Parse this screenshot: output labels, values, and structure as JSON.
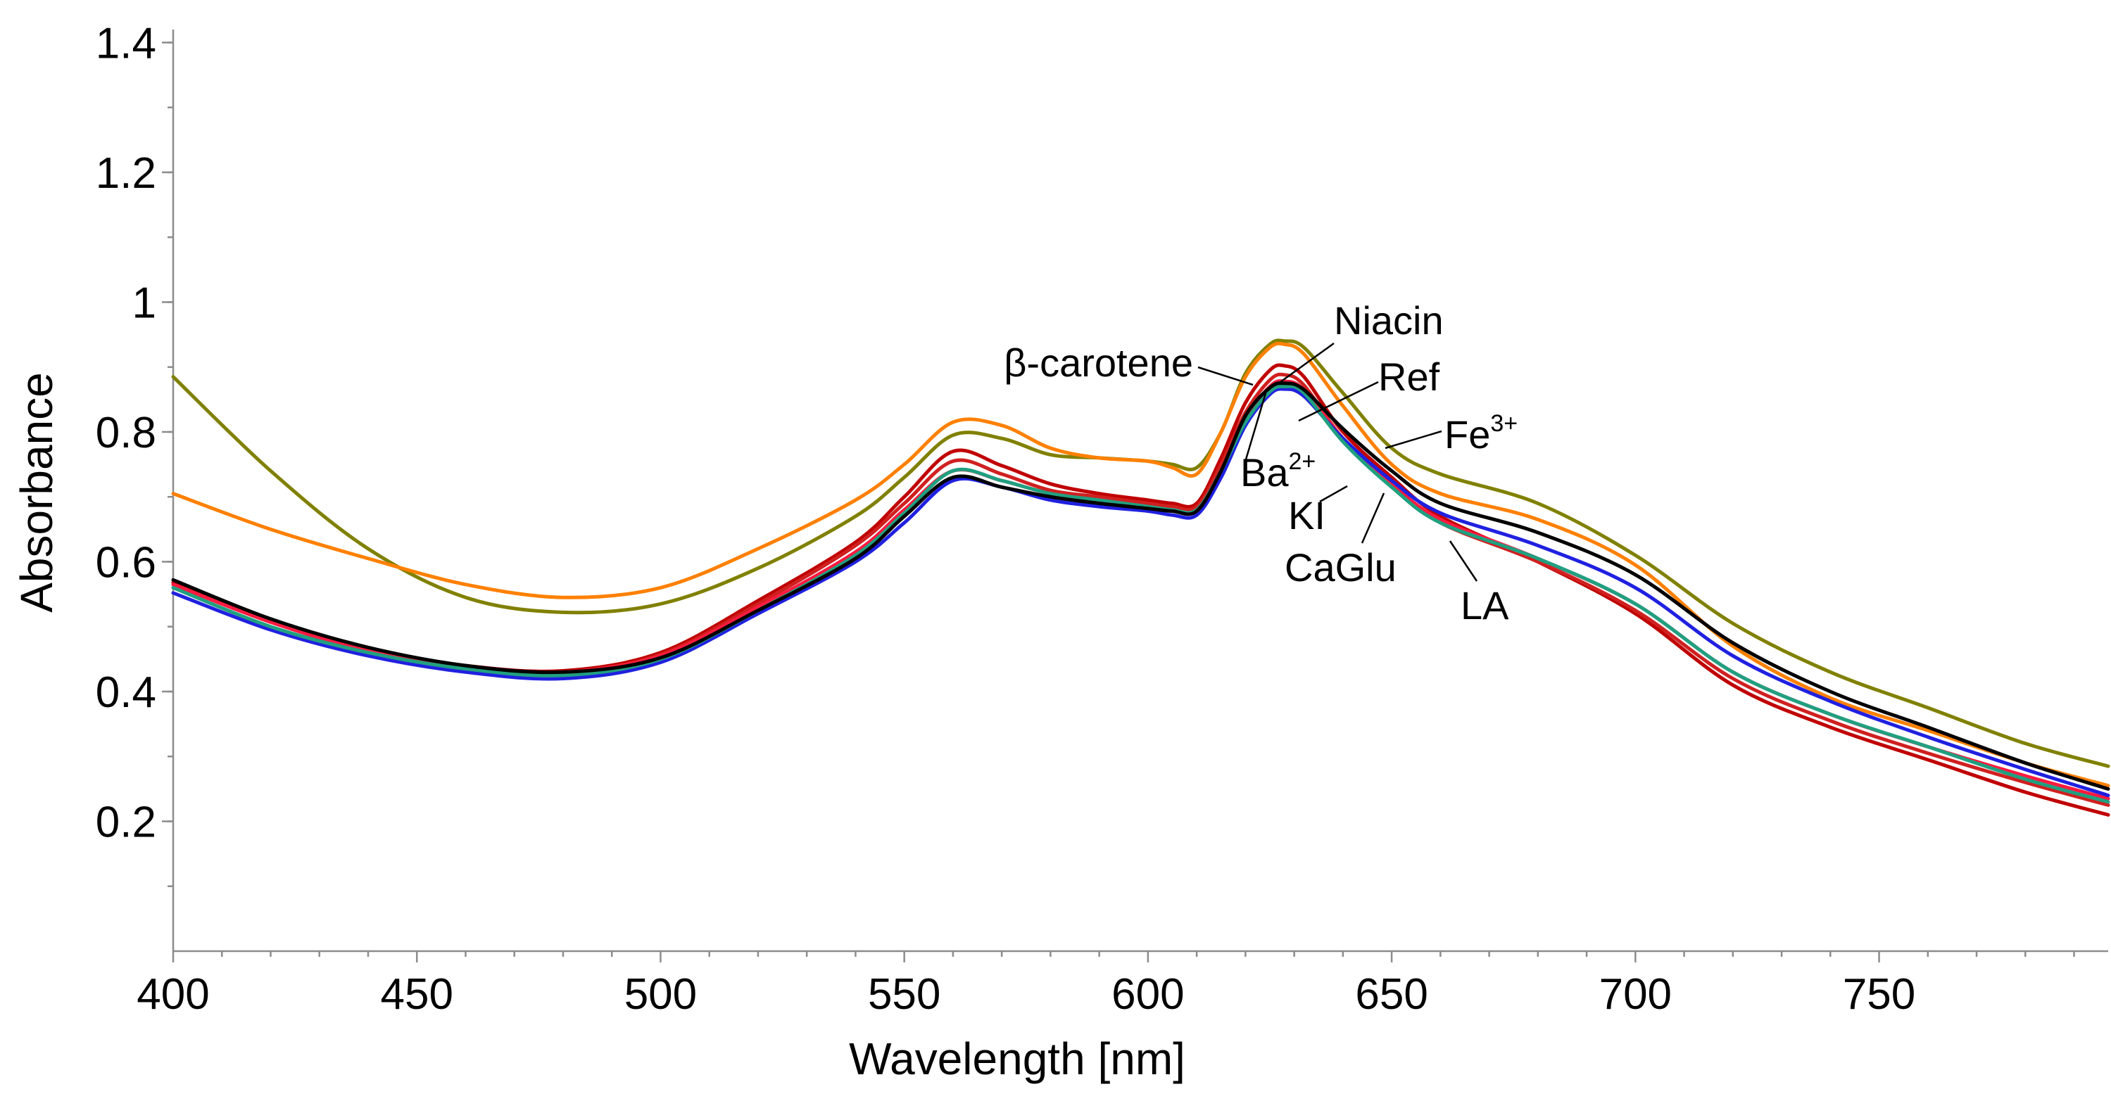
{
  "chart_data": {
    "type": "line",
    "title": "",
    "xlabel": "Wavelength [nm]",
    "ylabel": "Absorbance",
    "xlim": [
      400,
      797
    ],
    "ylim": [
      0,
      1.42
    ],
    "xticks": [
      400,
      450,
      500,
      550,
      600,
      650,
      700,
      750
    ],
    "xtick_labels": [
      "400",
      "450",
      "500",
      "550",
      "600",
      "650",
      "700",
      "750"
    ],
    "yticks": [
      0.2,
      0.4,
      0.6,
      0.8,
      1.0,
      1.2,
      1.4
    ],
    "ytick_labels": [
      "0.2",
      "0.4",
      "0.6",
      "0.8",
      "1",
      "1.2",
      "1.4"
    ],
    "grid": false,
    "x": [
      400,
      420,
      440,
      460,
      480,
      500,
      520,
      540,
      550,
      560,
      570,
      580,
      590,
      600,
      605,
      610,
      615,
      620,
      625,
      628,
      632,
      640,
      650,
      660,
      680,
      700,
      720,
      740,
      760,
      780,
      797
    ],
    "series": [
      {
        "name": "Fe3+",
        "color": "#808000",
        "values": [
          0.885,
          0.74,
          0.62,
          0.545,
          0.522,
          0.535,
          0.59,
          0.67,
          0.73,
          0.795,
          0.79,
          0.765,
          0.76,
          0.755,
          0.75,
          0.745,
          0.8,
          0.89,
          0.935,
          0.94,
          0.93,
          0.86,
          0.775,
          0.735,
          0.69,
          0.61,
          0.505,
          0.43,
          0.375,
          0.32,
          0.285
        ]
      },
      {
        "name": "β-carotene",
        "color": "#ff8000",
        "values": [
          0.705,
          0.65,
          0.605,
          0.565,
          0.545,
          0.56,
          0.62,
          0.695,
          0.75,
          0.815,
          0.81,
          0.775,
          0.76,
          0.755,
          0.745,
          0.735,
          0.8,
          0.885,
          0.93,
          0.935,
          0.92,
          0.84,
          0.75,
          0.705,
          0.665,
          0.595,
          0.47,
          0.39,
          0.34,
          0.29,
          0.255
        ]
      },
      {
        "name": "Niacin",
        "color": "#c00000",
        "values": [
          0.568,
          0.51,
          0.465,
          0.44,
          0.432,
          0.46,
          0.54,
          0.63,
          0.7,
          0.77,
          0.748,
          0.72,
          0.705,
          0.695,
          0.69,
          0.69,
          0.76,
          0.845,
          0.895,
          0.902,
          0.885,
          0.8,
          0.73,
          0.67,
          0.6,
          0.52,
          0.41,
          0.345,
          0.295,
          0.245,
          0.21
        ]
      },
      {
        "name": "LA",
        "color": "#d02020",
        "values": [
          0.565,
          0.507,
          0.463,
          0.438,
          0.43,
          0.457,
          0.535,
          0.625,
          0.69,
          0.755,
          0.735,
          0.71,
          0.7,
          0.69,
          0.685,
          0.685,
          0.75,
          0.83,
          0.88,
          0.888,
          0.872,
          0.79,
          0.72,
          0.66,
          0.6,
          0.525,
          0.42,
          0.355,
          0.305,
          0.26,
          0.225
        ]
      },
      {
        "name": "Ba2+",
        "color": "#ff1a40",
        "values": [
          0.565,
          0.507,
          0.463,
          0.438,
          0.43,
          0.455,
          0.53,
          0.615,
          0.68,
          0.74,
          0.725,
          0.705,
          0.695,
          0.685,
          0.68,
          0.68,
          0.74,
          0.82,
          0.87,
          0.878,
          0.865,
          0.79,
          0.72,
          0.665,
          0.605,
          0.535,
          0.43,
          0.365,
          0.315,
          0.27,
          0.235
        ]
      },
      {
        "name": "KI",
        "color": "#2020e0",
        "values": [
          0.552,
          0.495,
          0.455,
          0.43,
          0.42,
          0.445,
          0.52,
          0.6,
          0.66,
          0.725,
          0.715,
          0.695,
          0.685,
          0.678,
          0.672,
          0.672,
          0.73,
          0.81,
          0.858,
          0.866,
          0.855,
          0.79,
          0.725,
          0.675,
          0.625,
          0.56,
          0.455,
          0.385,
          0.33,
          0.28,
          0.24
        ]
      },
      {
        "name": "CaGlu",
        "color": "#20a080",
        "values": [
          0.56,
          0.5,
          0.46,
          0.435,
          0.425,
          0.45,
          0.525,
          0.61,
          0.675,
          0.74,
          0.725,
          0.705,
          0.695,
          0.685,
          0.68,
          0.68,
          0.74,
          0.815,
          0.862,
          0.87,
          0.86,
          0.785,
          0.715,
          0.66,
          0.605,
          0.535,
          0.43,
          0.365,
          0.315,
          0.265,
          0.23
        ]
      },
      {
        "name": "Ref",
        "color": "#000000",
        "values": [
          0.572,
          0.512,
          0.468,
          0.44,
          0.43,
          0.452,
          0.525,
          0.605,
          0.67,
          0.73,
          0.715,
          0.7,
          0.69,
          0.682,
          0.678,
          0.678,
          0.74,
          0.825,
          0.868,
          0.875,
          0.865,
          0.805,
          0.74,
          0.69,
          0.645,
          0.58,
          0.475,
          0.4,
          0.345,
          0.29,
          0.25
        ]
      }
    ],
    "annotations": [
      {
        "text": "Niacin",
        "series": "Niacin"
      },
      {
        "text": "β-carotene",
        "series": "β-carotene"
      },
      {
        "text": "Ref",
        "series": "Ref"
      },
      {
        "text": "Fe",
        "superscript": "3+",
        "series": "Fe3+"
      },
      {
        "text": "Ba",
        "superscript": "2+",
        "series": "Ba2+"
      },
      {
        "text": "KI",
        "series": "KI"
      },
      {
        "text": "CaGlu",
        "series": "CaGlu"
      },
      {
        "text": "LA",
        "series": "LA"
      }
    ]
  }
}
